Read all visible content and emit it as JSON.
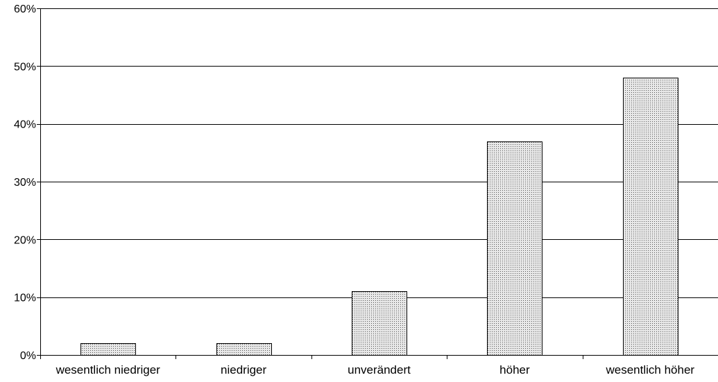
{
  "chart_data": {
    "type": "bar",
    "title": "",
    "xlabel": "",
    "ylabel": "",
    "categories": [
      "wesentlich niedriger",
      "niedriger",
      "unverändert",
      "höher",
      "wesentlich höher"
    ],
    "values": [
      2,
      2,
      11,
      37,
      48
    ],
    "ylim": [
      0,
      60
    ],
    "yticks": [
      0,
      10,
      20,
      30,
      40,
      50,
      60
    ],
    "ytick_labels": [
      "0%",
      "10%",
      "20%",
      "30%",
      "40%",
      "50%",
      "60%"
    ],
    "grid": true,
    "legend": "none",
    "colors": {
      "bar_fill": "#e8e8e8",
      "bar_dots": "#555555",
      "bar_stroke": "#000000",
      "gridline": "#000000",
      "axis": "#000000"
    }
  }
}
